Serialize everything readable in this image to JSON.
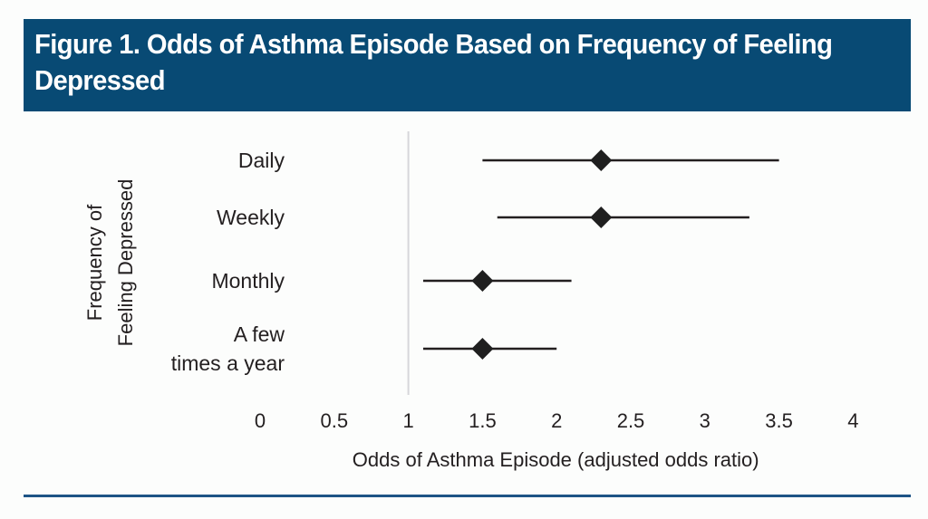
{
  "header": {
    "title": "Figure 1. Odds of Asthma Episode Based on Frequency of Feeling Depressed",
    "background_color": "#084a74"
  },
  "chart_data": {
    "type": "forest",
    "title": "Figure 1. Odds of Asthma Episode Based on Frequency of Feeling Depressed",
    "xlabel": "Odds of Asthma Episode (adjusted odds ratio)",
    "ylabel_lines": [
      "Frequency of",
      "Feeling Depressed"
    ],
    "xlim": [
      0,
      4
    ],
    "xticks": [
      0,
      0.5,
      1,
      1.5,
      2,
      2.5,
      3,
      3.5,
      4
    ],
    "xtick_labels": [
      "0",
      "0.5",
      "1",
      "1.5",
      "2",
      "2.5",
      "3",
      "3.5",
      "4"
    ],
    "reference_line": 1,
    "grid": false,
    "marker": "diamond",
    "categories": [
      {
        "label_lines": [
          "Daily"
        ],
        "estimate": 2.3,
        "ci_low": 1.5,
        "ci_high": 3.5
      },
      {
        "label_lines": [
          "Weekly"
        ],
        "estimate": 2.3,
        "ci_low": 1.6,
        "ci_high": 3.3
      },
      {
        "label_lines": [
          "Monthly"
        ],
        "estimate": 1.5,
        "ci_low": 1.1,
        "ci_high": 2.1
      },
      {
        "label_lines": [
          "A few",
          "times a year"
        ],
        "estimate": 1.5,
        "ci_low": 1.1,
        "ci_high": 2.0
      }
    ],
    "colors": {
      "marker": "#1f1f1f",
      "whisker": "#231f20",
      "reference_line": "#d6d6da",
      "text": "#231f20"
    }
  }
}
